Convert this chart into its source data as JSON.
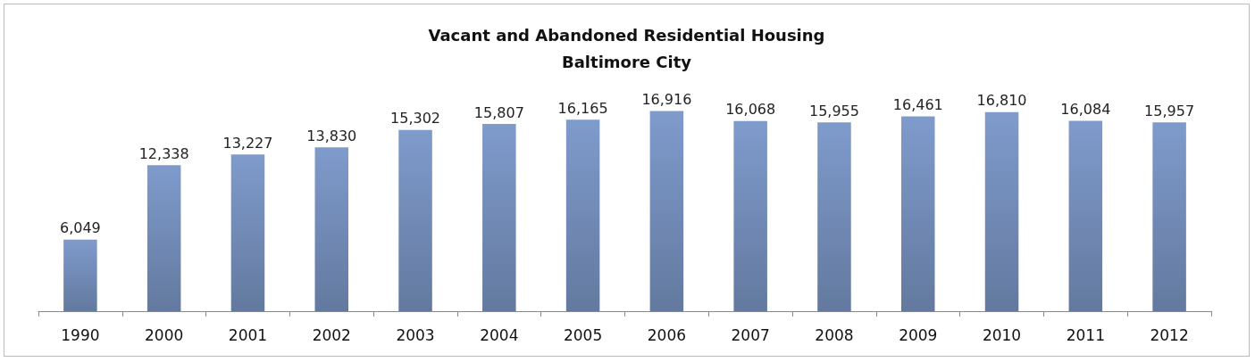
{
  "chart_data": {
    "type": "bar",
    "title": "Vacant and Abandoned Residential Housing\nBaltimore City",
    "categories": [
      "1990",
      "2000",
      "2001",
      "2002",
      "2003",
      "2004",
      "2005",
      "2006",
      "2007",
      "2008",
      "2009",
      "2010",
      "2011",
      "2012"
    ],
    "values": [
      6049,
      12338,
      13227,
      13830,
      15302,
      15807,
      16165,
      16916,
      16068,
      15955,
      16461,
      16810,
      16084,
      15957
    ],
    "value_labels": [
      "6,049",
      "12,338",
      "13,227",
      "13,830",
      "15,302",
      "15,807",
      "16,165",
      "16,916",
      "16,068",
      "15,955",
      "16,461",
      "16,810",
      "16,084",
      "15,957"
    ],
    "color": "#7f9bcc"
  }
}
